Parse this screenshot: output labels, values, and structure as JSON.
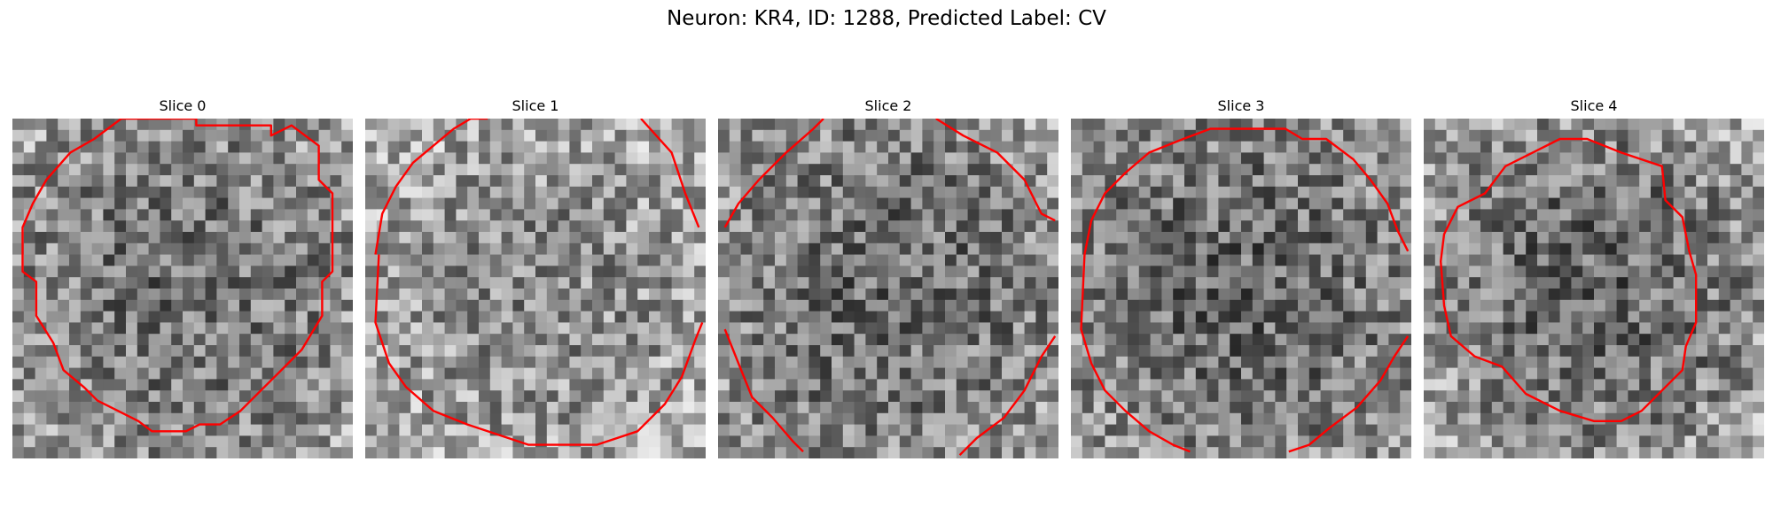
{
  "figure": {
    "title": "Neuron: KR4, ID: 1288, Predicted Label: CV"
  },
  "slices": [
    {
      "title": "Slice 0",
      "seed": 11,
      "center_tone": 0.44,
      "edge_tone": 0.62,
      "contour": [
        [
          0.54,
          0.0
        ],
        [
          0.54,
          0.02
        ],
        [
          0.76,
          0.02
        ],
        [
          0.76,
          0.05
        ],
        [
          0.82,
          0.02
        ],
        [
          0.9,
          0.08
        ],
        [
          0.9,
          0.18
        ],
        [
          0.94,
          0.22
        ],
        [
          0.94,
          0.45
        ],
        [
          0.91,
          0.48
        ],
        [
          0.91,
          0.58
        ],
        [
          0.85,
          0.68
        ],
        [
          0.79,
          0.74
        ],
        [
          0.73,
          0.8
        ],
        [
          0.67,
          0.86
        ],
        [
          0.61,
          0.9
        ],
        [
          0.55,
          0.9
        ],
        [
          0.51,
          0.92
        ],
        [
          0.41,
          0.92
        ],
        [
          0.37,
          0.89
        ],
        [
          0.31,
          0.86
        ],
        [
          0.25,
          0.83
        ],
        [
          0.21,
          0.79
        ],
        [
          0.15,
          0.74
        ],
        [
          0.12,
          0.66
        ],
        [
          0.07,
          0.58
        ],
        [
          0.07,
          0.48
        ],
        [
          0.03,
          0.45
        ],
        [
          0.03,
          0.32
        ],
        [
          0.06,
          0.25
        ],
        [
          0.1,
          0.18
        ],
        [
          0.17,
          0.1
        ],
        [
          0.24,
          0.06
        ],
        [
          0.32,
          0.0
        ]
      ],
      "closed": true
    },
    {
      "title": "Slice 1",
      "seed": 23,
      "center_tone": 0.54,
      "edge_tone": 0.7,
      "contour": [
        [
          0.03,
          0.4
        ],
        [
          0.05,
          0.28
        ],
        [
          0.09,
          0.2
        ],
        [
          0.14,
          0.13
        ],
        [
          0.2,
          0.08
        ],
        [
          0.26,
          0.03
        ],
        [
          0.31,
          0.0
        ],
        [
          0.36,
          0.0
        ]
      ],
      "contour2": [
        [
          0.81,
          0.0
        ],
        [
          0.9,
          0.1
        ],
        [
          0.94,
          0.22
        ],
        [
          0.98,
          0.32
        ]
      ],
      "contour3": [
        [
          0.04,
          0.4
        ],
        [
          0.03,
          0.6
        ],
        [
          0.07,
          0.72
        ],
        [
          0.12,
          0.79
        ],
        [
          0.2,
          0.86
        ],
        [
          0.3,
          0.9
        ],
        [
          0.48,
          0.96
        ],
        [
          0.68,
          0.96
        ],
        [
          0.8,
          0.92
        ],
        [
          0.88,
          0.84
        ],
        [
          0.93,
          0.76
        ],
        [
          0.97,
          0.65
        ],
        [
          0.99,
          0.6
        ]
      ],
      "closed": false
    },
    {
      "title": "Slice 2",
      "seed": 37,
      "center_tone": 0.42,
      "edge_tone": 0.6,
      "contour": [
        [
          0.02,
          0.32
        ],
        [
          0.06,
          0.25
        ],
        [
          0.12,
          0.18
        ],
        [
          0.2,
          0.1
        ],
        [
          0.28,
          0.03
        ],
        [
          0.31,
          0.0
        ]
      ],
      "contour2": [
        [
          0.64,
          0.0
        ],
        [
          0.72,
          0.05
        ],
        [
          0.82,
          0.1
        ],
        [
          0.9,
          0.18
        ],
        [
          0.95,
          0.28
        ],
        [
          0.99,
          0.3
        ]
      ],
      "contour3": [
        [
          0.02,
          0.62
        ],
        [
          0.06,
          0.72
        ],
        [
          0.1,
          0.82
        ],
        [
          0.16,
          0.88
        ],
        [
          0.22,
          0.95
        ],
        [
          0.25,
          0.98
        ]
      ],
      "contour4": [
        [
          0.71,
          0.99
        ],
        [
          0.76,
          0.94
        ],
        [
          0.84,
          0.88
        ],
        [
          0.9,
          0.8
        ],
        [
          0.95,
          0.7
        ],
        [
          0.99,
          0.64
        ]
      ],
      "closed": false
    },
    {
      "title": "Slice 3",
      "seed": 53,
      "center_tone": 0.4,
      "edge_tone": 0.6,
      "contour": [
        [
          0.04,
          0.4
        ],
        [
          0.06,
          0.3
        ],
        [
          0.1,
          0.22
        ],
        [
          0.16,
          0.16
        ],
        [
          0.23,
          0.1
        ],
        [
          0.33,
          0.06
        ],
        [
          0.41,
          0.03
        ],
        [
          0.63,
          0.03
        ],
        [
          0.68,
          0.06
        ],
        [
          0.75,
          0.06
        ],
        [
          0.83,
          0.12
        ],
        [
          0.88,
          0.18
        ],
        [
          0.93,
          0.25
        ],
        [
          0.96,
          0.33
        ],
        [
          0.99,
          0.39
        ]
      ],
      "contour2": [
        [
          0.04,
          0.4
        ],
        [
          0.03,
          0.62
        ],
        [
          0.06,
          0.72
        ],
        [
          0.1,
          0.8
        ],
        [
          0.16,
          0.86
        ],
        [
          0.23,
          0.92
        ],
        [
          0.3,
          0.96
        ],
        [
          0.35,
          0.98
        ]
      ],
      "contour3": [
        [
          0.64,
          0.98
        ],
        [
          0.7,
          0.96
        ],
        [
          0.76,
          0.91
        ],
        [
          0.84,
          0.85
        ],
        [
          0.91,
          0.77
        ],
        [
          0.95,
          0.7
        ],
        [
          0.99,
          0.64
        ]
      ],
      "closed": false
    },
    {
      "title": "Slice 4",
      "seed": 71,
      "center_tone": 0.4,
      "edge_tone": 0.66,
      "contour": [
        [
          0.32,
          0.1
        ],
        [
          0.4,
          0.06
        ],
        [
          0.48,
          0.06
        ],
        [
          0.58,
          0.1
        ],
        [
          0.7,
          0.14
        ],
        [
          0.71,
          0.24
        ],
        [
          0.76,
          0.29
        ],
        [
          0.78,
          0.39
        ],
        [
          0.8,
          0.46
        ],
        [
          0.8,
          0.6
        ],
        [
          0.77,
          0.67
        ],
        [
          0.76,
          0.74
        ],
        [
          0.7,
          0.8
        ],
        [
          0.64,
          0.86
        ],
        [
          0.58,
          0.89
        ],
        [
          0.5,
          0.89
        ],
        [
          0.4,
          0.86
        ],
        [
          0.3,
          0.81
        ],
        [
          0.23,
          0.73
        ],
        [
          0.15,
          0.7
        ],
        [
          0.08,
          0.64
        ],
        [
          0.06,
          0.55
        ],
        [
          0.05,
          0.42
        ],
        [
          0.06,
          0.34
        ],
        [
          0.1,
          0.26
        ],
        [
          0.18,
          0.22
        ],
        [
          0.24,
          0.14
        ]
      ],
      "closed": true
    }
  ],
  "style": {
    "contour_color": "#ff0000",
    "grid_cells": 30
  }
}
